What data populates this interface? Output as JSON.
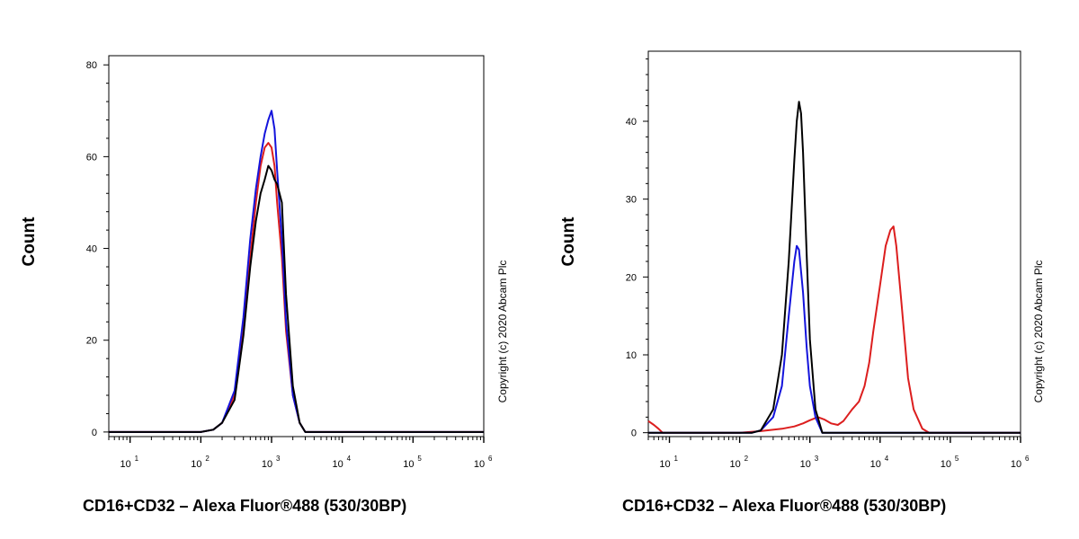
{
  "colors": {
    "black": "#000000",
    "blue": "#1414dc",
    "red": "#dc1e1e"
  },
  "chart_data": [
    {
      "type": "line",
      "xscale": "log",
      "xlim": [
        5,
        1000000
      ],
      "ylim": [
        -1,
        82
      ],
      "xlabel": "CD16+CD32 – Alexa Fluor®488 (530/30BP)",
      "ylabel": "Count",
      "yticks": [
        "0",
        "20",
        "40",
        "60",
        "80"
      ],
      "ytick_values": [
        0,
        20,
        40,
        60,
        80
      ],
      "xticks": [
        {
          "base": "10",
          "exp": "1",
          "value": 10
        },
        {
          "base": "10",
          "exp": "2",
          "value": 100
        },
        {
          "base": "10",
          "exp": "3",
          "value": 1000
        },
        {
          "base": "10",
          "exp": "4",
          "value": 10000
        },
        {
          "base": "10",
          "exp": "5",
          "value": 100000
        },
        {
          "base": "10",
          "exp": "6",
          "value": 1000000
        }
      ],
      "copyright": "Copyright (c) 2020 Abcam Plc",
      "series": [
        {
          "color": "#dc1e1e",
          "x": [
            5,
            100,
            150,
            200,
            300,
            400,
            500,
            600,
            700,
            800,
            900,
            1000,
            1100,
            1200,
            1400,
            1600,
            2000,
            2500,
            3000,
            1000000
          ],
          "y": [
            0,
            0,
            0.5,
            2,
            8,
            22,
            38,
            50,
            58,
            62,
            63,
            62,
            58,
            50,
            38,
            22,
            8,
            2,
            0,
            0
          ]
        },
        {
          "color": "#1414dc",
          "x": [
            5,
            100,
            150,
            200,
            300,
            400,
            500,
            600,
            700,
            800,
            900,
            1000,
            1100,
            1200,
            1400,
            1600,
            2000,
            2500,
            3000,
            1000000
          ],
          "y": [
            0,
            0,
            0.5,
            2,
            9,
            25,
            42,
            53,
            60,
            65,
            68,
            70,
            66,
            57,
            42,
            24,
            8,
            2,
            0,
            0
          ]
        },
        {
          "color": "#000000",
          "x": [
            5,
            100,
            150,
            200,
            300,
            400,
            500,
            600,
            700,
            800,
            900,
            1000,
            1100,
            1200,
            1400,
            1600,
            2000,
            2500,
            3000,
            1000000
          ],
          "y": [
            0,
            0,
            0.5,
            2,
            7,
            21,
            36,
            46,
            52,
            55,
            58,
            57,
            55,
            54,
            50,
            30,
            10,
            2,
            0,
            0
          ]
        }
      ]
    },
    {
      "type": "line",
      "xscale": "log",
      "xlim": [
        5,
        1000000
      ],
      "ylim": [
        -0.5,
        49
      ],
      "xlabel": "CD16+CD32 – Alexa Fluor®488 (530/30BP)",
      "ylabel": "Count",
      "yticks": [
        "0",
        "10",
        "20",
        "30",
        "40"
      ],
      "ytick_values": [
        0,
        10,
        20,
        30,
        40
      ],
      "xticks": [
        {
          "base": "10",
          "exp": "1",
          "value": 10
        },
        {
          "base": "10",
          "exp": "2",
          "value": 100
        },
        {
          "base": "10",
          "exp": "3",
          "value": 1000
        },
        {
          "base": "10",
          "exp": "4",
          "value": 10000
        },
        {
          "base": "10",
          "exp": "5",
          "value": 100000
        },
        {
          "base": "10",
          "exp": "6",
          "value": 1000000
        }
      ],
      "copyright": "Copyright (c) 2020 Abcam Plc",
      "series": [
        {
          "color": "#dc1e1e",
          "x": [
            5,
            6,
            7,
            8,
            100,
            200,
            400,
            600,
            800,
            1000,
            1300,
            1600,
            2000,
            2500,
            3000,
            4000,
            5000,
            6000,
            7000,
            8000,
            10000,
            12000,
            14000,
            15500,
            17000,
            20000,
            25000,
            30000,
            40000,
            50000,
            1000000
          ],
          "y": [
            1.5,
            1,
            0.5,
            0,
            0,
            0.2,
            0.5,
            0.8,
            1.2,
            1.6,
            2,
            1.7,
            1.2,
            1,
            1.5,
            3,
            4,
            6,
            9,
            13,
            19,
            24,
            26,
            26.5,
            24,
            17,
            7,
            3,
            0.5,
            0,
            0
          ]
        },
        {
          "color": "#1414dc",
          "x": [
            5,
            150,
            200,
            300,
            400,
            500,
            600,
            650,
            700,
            800,
            900,
            1000,
            1200,
            1500,
            1000000
          ],
          "y": [
            0,
            0,
            0.3,
            2,
            6,
            15,
            22,
            24,
            23.5,
            18,
            11,
            6,
            2,
            0,
            0
          ]
        },
        {
          "color": "#000000",
          "x": [
            5,
            150,
            200,
            300,
            400,
            500,
            600,
            650,
            700,
            750,
            800,
            900,
            1000,
            1200,
            1500,
            1000000
          ],
          "y": [
            0,
            0,
            0.3,
            3,
            10,
            22,
            35,
            40,
            42.5,
            41,
            36,
            23,
            12,
            3,
            0,
            0
          ]
        }
      ]
    }
  ]
}
